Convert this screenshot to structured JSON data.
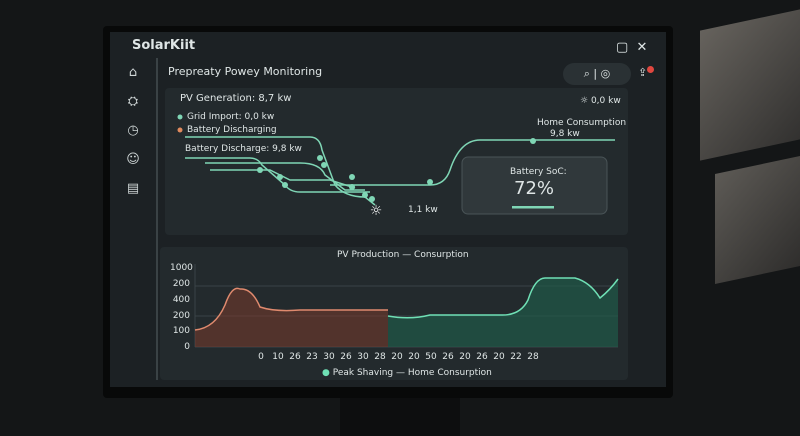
{
  "app": {
    "name": "SolarKiit"
  },
  "header": {
    "title": "Prepreaty Powey Monitoring"
  },
  "flow": {
    "pv_generation": "PV Generation: 8,7 kw",
    "sun_value": "0,0 kw",
    "grid_import": "Grid Import: 0,0 kw",
    "battery_discharging": "Battery Discharging",
    "battery_discharge": "Battery Discharge: 9,8 kw",
    "home_consumption": "Home Consumption",
    "home_value": "9,8 kw",
    "bottom_value": "1,1 kw",
    "battery_soc_label": "Battery SoC:",
    "battery_soc": "72%"
  },
  "chart": {
    "title": "PV Production — Consurption",
    "y_labels": [
      "1000",
      "200",
      "400",
      "200",
      "100",
      "0"
    ],
    "x_labels": [
      "0",
      "10",
      "26",
      "23",
      "30",
      "26",
      "30",
      "28",
      "20",
      "20",
      "50",
      "26",
      "20",
      "26",
      "20",
      "22",
      "28"
    ],
    "legend": [
      "Peak Shaving",
      "Home Consurption"
    ]
  }
}
